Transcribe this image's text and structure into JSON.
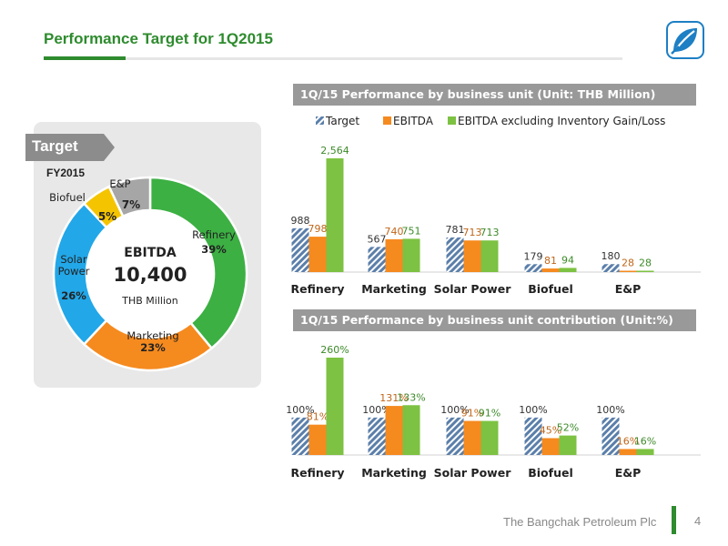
{
  "page": {
    "title": "Performance Target for 1Q2015",
    "footer_company": "The Bangchak Petroleum Plc",
    "page_number": "4",
    "logo_icon": "bangchak-leaf-logo-icon"
  },
  "left_panel": {
    "tag": "Target",
    "period": "FY2015",
    "center_title": "EBITDA",
    "center_value": "10,400",
    "center_unit": "THB Million",
    "segments": [
      {
        "name": "Refinery",
        "pct": "39%",
        "value": 39,
        "color": "#3cb043"
      },
      {
        "name": "Marketing",
        "pct": "23%",
        "value": 23,
        "color": "#f58a1f"
      },
      {
        "name": "Solar\nPower",
        "pct": "26%",
        "value": 26,
        "color": "#22a7e8"
      },
      {
        "name": "Biofuel",
        "pct": "5%",
        "value": 5,
        "color": "#f5c400"
      },
      {
        "name": "E&P",
        "pct": "7%",
        "value": 7,
        "color": "#a6a6a6"
      }
    ]
  },
  "chart_data": [
    {
      "type": "bar",
      "header": "1Q/15 Performance by business unit (Unit: THB Million)",
      "categories": [
        "Refinery",
        "Marketing",
        "Solar Power",
        "Biofuel",
        "E&P"
      ],
      "legend": [
        "Target",
        "EBITDA",
        "EBITDA excluding Inventory Gain/Loss"
      ],
      "series": [
        {
          "name": "Target",
          "values": [
            988,
            567,
            781,
            179,
            180
          ],
          "labels": [
            "988",
            "567",
            "781",
            "179",
            "180"
          ],
          "color": "#8fa9c8"
        },
        {
          "name": "EBITDA",
          "values": [
            798,
            740,
            713,
            81,
            28
          ],
          "labels": [
            "798",
            "740",
            "713",
            "81",
            "28"
          ],
          "color": "#f58a1f"
        },
        {
          "name": "EBITDA excluding Inventory Gain/Loss",
          "values": [
            2564,
            751,
            713,
            94,
            28
          ],
          "labels": [
            "2,564",
            "751",
            "713",
            "94",
            "28"
          ],
          "color": "#7dc242"
        }
      ],
      "ylim": [
        0,
        2564
      ],
      "grid": false,
      "legend_position": "top"
    },
    {
      "type": "bar",
      "header": "1Q/15 Performance by business unit contribution (Unit:%)",
      "categories": [
        "Refinery",
        "Marketing",
        "Solar Power",
        "Biofuel",
        "E&P"
      ],
      "series": [
        {
          "name": "Target",
          "values": [
            100,
            100,
            100,
            100,
            100
          ],
          "labels": [
            "100%",
            "100%",
            "100%",
            "100%",
            "100%"
          ],
          "color": "#8fa9c8"
        },
        {
          "name": "EBITDA",
          "values": [
            81,
            131,
            91,
            45,
            16
          ],
          "labels": [
            "81%",
            "131%",
            "91%",
            "45%",
            "16%"
          ],
          "color": "#f58a1f"
        },
        {
          "name": "EBITDA excluding Inventory Gain/Loss",
          "values": [
            260,
            133,
            91,
            52,
            16
          ],
          "labels": [
            "260%",
            "133%",
            "91%",
            "52%",
            "16%"
          ],
          "color": "#7dc242"
        }
      ],
      "ylim": [
        0,
        260
      ],
      "grid": false
    }
  ]
}
